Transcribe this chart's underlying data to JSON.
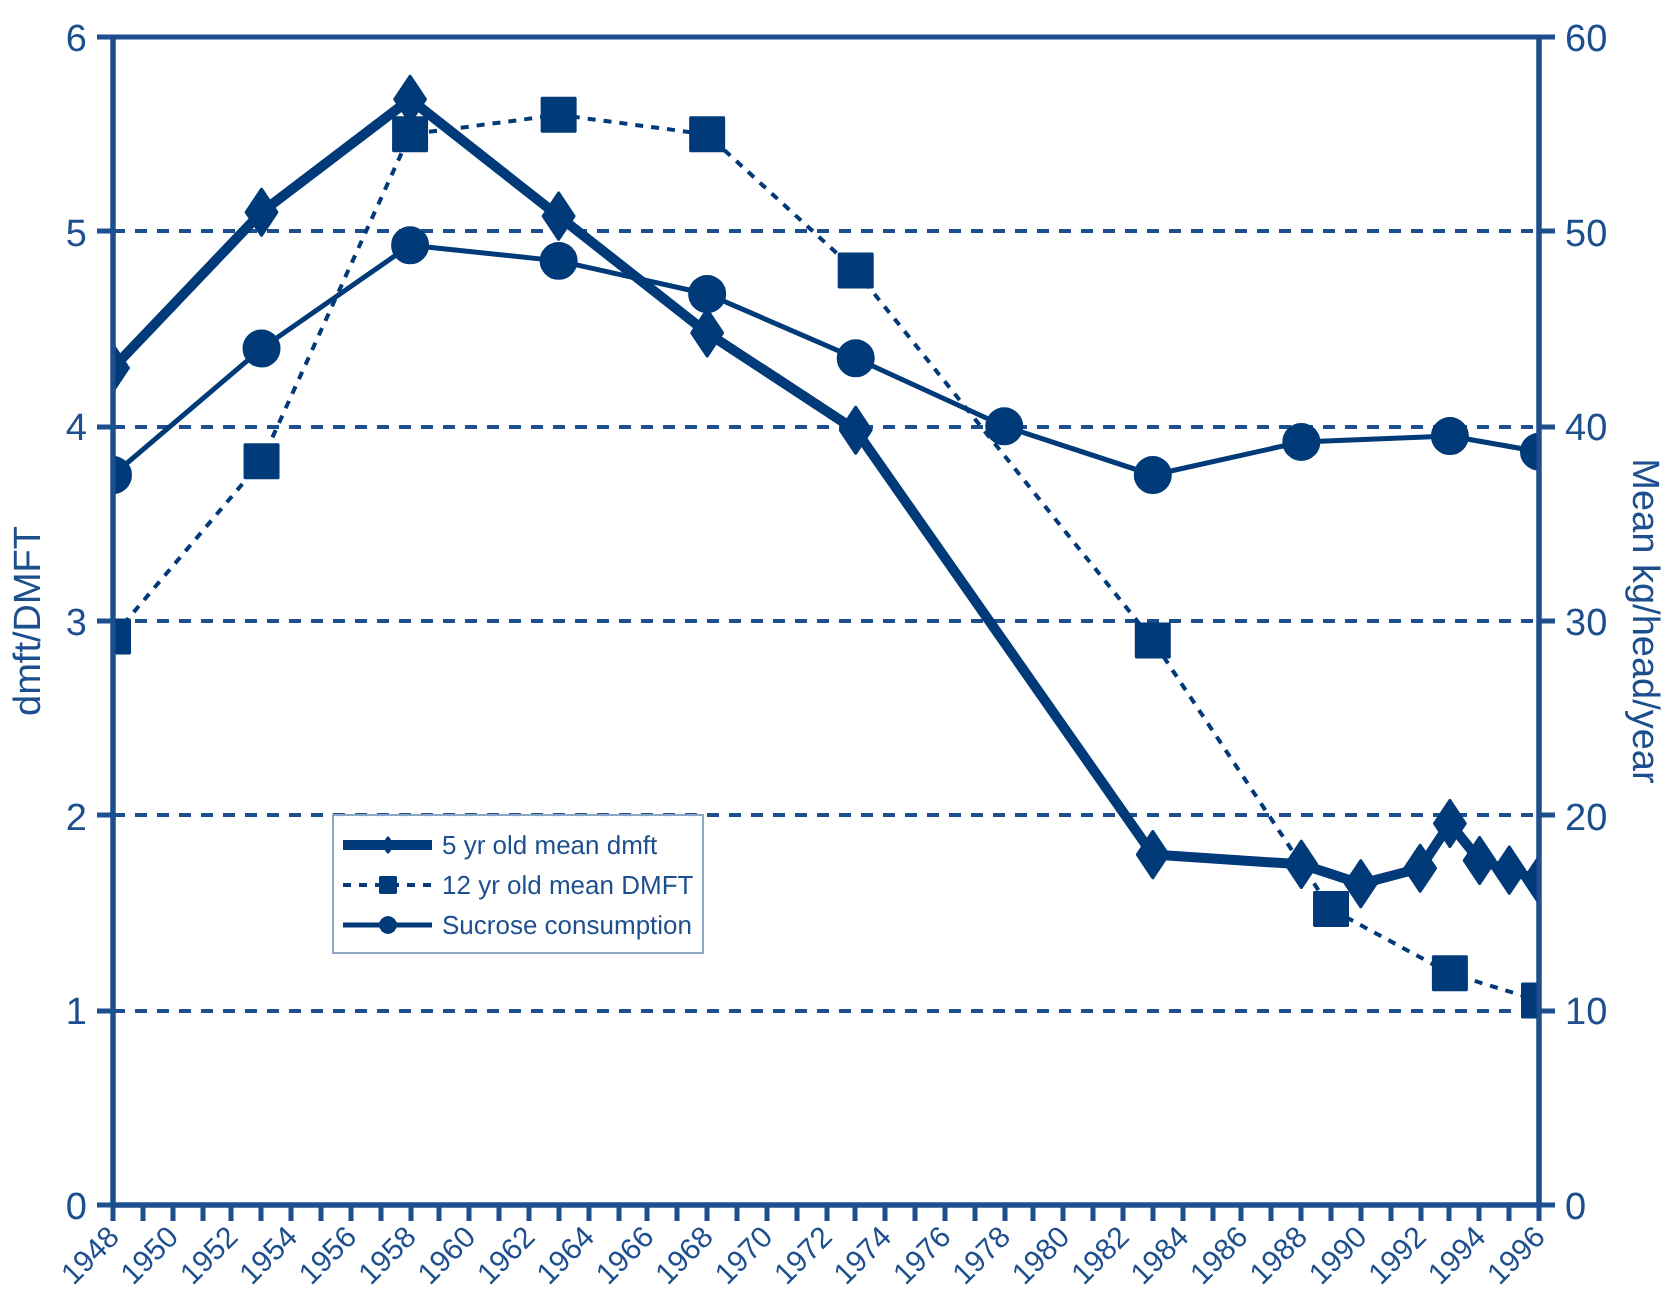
{
  "chart_data": {
    "type": "line",
    "xlabel": null,
    "ylabel": "dmft/DMFT",
    "y2label": "Mean kg/head/year",
    "xlim": [
      1948,
      1996
    ],
    "xticks": [
      {
        "value": 1948,
        "label": "1948"
      },
      {
        "value": 1949,
        "label": null
      },
      {
        "value": 1950,
        "label": "1950"
      },
      {
        "value": 1951,
        "label": null
      },
      {
        "value": 1952,
        "label": "1952"
      },
      {
        "value": 1953,
        "label": null
      },
      {
        "value": 1954,
        "label": "1954"
      },
      {
        "value": 1955,
        "label": null
      },
      {
        "value": 1956,
        "label": "1956"
      },
      {
        "value": 1957,
        "label": null
      },
      {
        "value": 1958,
        "label": "1958"
      },
      {
        "value": 1959,
        "label": null
      },
      {
        "value": 1960,
        "label": "1960"
      },
      {
        "value": 1961,
        "label": null
      },
      {
        "value": 1962,
        "label": "1962"
      },
      {
        "value": 1963,
        "label": null
      },
      {
        "value": 1964,
        "label": "1964"
      },
      {
        "value": 1965,
        "label": null
      },
      {
        "value": 1966,
        "label": "1966"
      },
      {
        "value": 1967,
        "label": null
      },
      {
        "value": 1968,
        "label": "1968"
      },
      {
        "value": 1969,
        "label": null
      },
      {
        "value": 1970,
        "label": "1970"
      },
      {
        "value": 1971,
        "label": null
      },
      {
        "value": 1972,
        "label": "1972"
      },
      {
        "value": 1973,
        "label": null
      },
      {
        "value": 1974,
        "label": "1974"
      },
      {
        "value": 1975,
        "label": null
      },
      {
        "value": 1976,
        "label": "1976"
      },
      {
        "value": 1977,
        "label": null
      },
      {
        "value": 1978,
        "label": "1978"
      },
      {
        "value": 1979,
        "label": null
      },
      {
        "value": 1980,
        "label": "1980"
      },
      {
        "value": 1981,
        "label": null
      },
      {
        "value": 1982,
        "label": "1982"
      },
      {
        "value": 1983,
        "label": null
      },
      {
        "value": 1984,
        "label": "1984"
      },
      {
        "value": 1985,
        "label": null
      },
      {
        "value": 1986,
        "label": "1986"
      },
      {
        "value": 1987,
        "label": null
      },
      {
        "value": 1988,
        "label": "1988"
      },
      {
        "value": 1989,
        "label": null
      },
      {
        "value": 1990,
        "label": "1990"
      },
      {
        "value": 1991,
        "label": null
      },
      {
        "value": 1992,
        "label": "1992"
      },
      {
        "value": 1993,
        "label": null
      },
      {
        "value": 1994,
        "label": "1994"
      },
      {
        "value": 1995,
        "label": null
      },
      {
        "value": 1996,
        "label": "1996"
      }
    ],
    "ylim": [
      0,
      6
    ],
    "yticks": [
      0,
      1,
      2,
      3,
      4,
      5,
      6
    ],
    "y2lim": [
      0,
      60
    ],
    "y2ticks": [
      0,
      10,
      20,
      30,
      40,
      50,
      60
    ],
    "grid": "y",
    "legend": "center left",
    "series": [
      {
        "name": "5 yr old mean dmft",
        "color": "#003a78",
        "marker": "diamond",
        "line_style": "solid",
        "x": [
          1948,
          1953,
          1958,
          1963,
          1968,
          1973,
          1983,
          1988,
          1990,
          1992,
          1993,
          1994,
          1995,
          1996
        ],
        "values": [
          4.3,
          5.1,
          5.68,
          5.08,
          4.48,
          3.98,
          1.8,
          1.75,
          1.65,
          1.73,
          1.96,
          1.77,
          1.72,
          1.67
        ]
      },
      {
        "name": "12 yr old mean DMFT",
        "color": "#003a78",
        "marker": "square",
        "line_style": "dashed",
        "x": [
          1948,
          1953,
          1958,
          1963,
          1968,
          1973,
          1983,
          1989,
          1993,
          1996
        ],
        "values": [
          2.92,
          3.82,
          5.5,
          5.6,
          5.5,
          4.8,
          2.9,
          1.52,
          1.19,
          1.05
        ]
      },
      {
        "name": "Sucrose consumption",
        "color": "#003a78",
        "marker": "circle",
        "line_style": "solid",
        "axis": "y2",
        "x": [
          1948,
          1953,
          1958,
          1963,
          1968,
          1973,
          1978,
          1983,
          1988,
          1993,
          1996
        ],
        "values": [
          37.5,
          44,
          49.3,
          48.5,
          46.8,
          43.5,
          40,
          37.5,
          39.2,
          39.5,
          38.7
        ]
      }
    ]
  }
}
